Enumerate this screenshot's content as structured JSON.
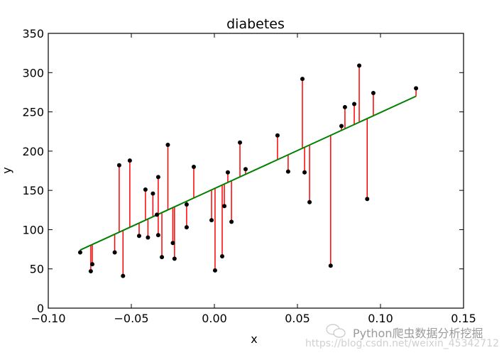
{
  "chart_data": {
    "type": "scatter",
    "title": "diabetes",
    "xlabel": "x",
    "ylabel": "y",
    "xlim": [
      -0.1,
      0.15
    ],
    "ylim": [
      0,
      350
    ],
    "xticks": [
      -0.1,
      -0.05,
      0.0,
      0.05,
      0.1,
      0.15
    ],
    "xtick_labels": [
      "−0.10",
      "−0.05",
      "0.00",
      "0.05",
      "0.10",
      "0.15"
    ],
    "yticks": [
      0,
      50,
      100,
      150,
      200,
      250,
      300,
      350
    ],
    "ytick_labels": [
      "0",
      "50",
      "100",
      "150",
      "200",
      "250",
      "300",
      "350"
    ],
    "grid": false,
    "points": [
      [
        -0.0808,
        71
      ],
      [
        -0.0744,
        47
      ],
      [
        -0.0735,
        56
      ],
      [
        -0.06,
        71
      ],
      [
        -0.0573,
        182
      ],
      [
        -0.055,
        41
      ],
      [
        -0.0509,
        188
      ],
      [
        -0.0453,
        92
      ],
      [
        -0.0415,
        151
      ],
      [
        -0.04,
        90
      ],
      [
        -0.037,
        146
      ],
      [
        -0.0346,
        119
      ],
      [
        -0.0338,
        167
      ],
      [
        -0.0338,
        93
      ],
      [
        -0.0316,
        65
      ],
      [
        -0.028,
        208
      ],
      [
        -0.025,
        83
      ],
      [
        -0.024,
        63
      ],
      [
        -0.0167,
        132
      ],
      [
        -0.0167,
        103
      ],
      [
        -0.0124,
        180
      ],
      [
        -0.0017,
        112
      ],
      [
        0.0004,
        48
      ],
      [
        0.0047,
        66
      ],
      [
        0.006,
        130
      ],
      [
        0.0081,
        173
      ],
      [
        0.0103,
        110
      ],
      [
        0.0154,
        211
      ],
      [
        0.0188,
        177
      ],
      [
        0.038,
        220
      ],
      [
        0.0444,
        174
      ],
      [
        0.053,
        292
      ],
      [
        0.0543,
        173
      ],
      [
        0.0573,
        135
      ],
      [
        0.07,
        54
      ],
      [
        0.0765,
        232
      ],
      [
        0.0786,
        256
      ],
      [
        0.0842,
        260
      ],
      [
        0.0872,
        309
      ],
      [
        0.092,
        139
      ],
      [
        0.0957,
        274
      ],
      [
        0.1214,
        280
      ]
    ],
    "fit_line": {
      "slope": 969,
      "intercept": 152.3
    },
    "colors": {
      "points": "#000000",
      "residuals": "#ff0000",
      "fit": "#008000"
    }
  },
  "watermark": {
    "line1": "Python爬虫数据分析挖掘",
    "line2": "https://blog.csdn.net/weixin_45342712"
  }
}
